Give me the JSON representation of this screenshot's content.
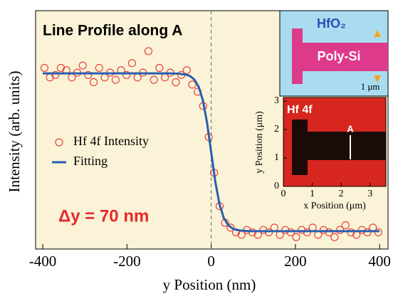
{
  "chart_data": {
    "type": "scatter",
    "title": "Line Profile along A",
    "xlabel": "y Position (nm)",
    "ylabel": "Intensity (arb. units)",
    "annotation": "Δy = 70 nm",
    "xlim": [
      -417,
      420
    ],
    "ylim": [
      0,
      1
    ],
    "xticks": [
      -400,
      -200,
      0,
      200,
      400
    ],
    "reference_line_x": 0,
    "series": [
      {
        "name": "Hf 4f Intensity",
        "style": "markers",
        "color": "#e8443a",
        "x": [
          -396,
          -383,
          -370,
          -357,
          -344,
          -331,
          -318,
          -305,
          -292,
          -279,
          -266,
          -253,
          -240,
          -227,
          -214,
          -201,
          -188,
          -175,
          -162,
          -149,
          -136,
          -123,
          -110,
          -97,
          -84,
          -71,
          -58,
          -45,
          -32,
          -19,
          -6,
          7,
          20,
          33,
          46,
          59,
          72,
          85,
          98,
          111,
          124,
          137,
          150,
          163,
          176,
          189,
          202,
          215,
          228,
          241,
          254,
          267,
          280,
          293,
          306,
          319,
          332,
          345,
          358,
          371,
          384,
          397
        ],
        "values": [
          0.76,
          0.72,
          0.73,
          0.76,
          0.75,
          0.72,
          0.74,
          0.77,
          0.73,
          0.7,
          0.76,
          0.72,
          0.74,
          0.71,
          0.75,
          0.73,
          0.78,
          0.72,
          0.74,
          0.83,
          0.71,
          0.76,
          0.72,
          0.74,
          0.7,
          0.73,
          0.75,
          0.69,
          0.66,
          0.6,
          0.47,
          0.32,
          0.18,
          0.11,
          0.09,
          0.07,
          0.06,
          0.08,
          0.07,
          0.06,
          0.08,
          0.07,
          0.09,
          0.06,
          0.08,
          0.07,
          0.05,
          0.08,
          0.07,
          0.09,
          0.06,
          0.08,
          0.07,
          0.05,
          0.08,
          0.1,
          0.07,
          0.06,
          0.08,
          0.07,
          0.09,
          0.07
        ]
      },
      {
        "name": "Fitting",
        "style": "line",
        "color": "#2a5db0",
        "x": [
          -400,
          -300,
          -200,
          -100,
          -80,
          -60,
          -50,
          -40,
          -30,
          -20,
          -10,
          0,
          10,
          20,
          30,
          40,
          50,
          60,
          80,
          100,
          200,
          300,
          400
        ],
        "values": [
          0.737,
          0.737,
          0.737,
          0.737,
          0.736,
          0.732,
          0.725,
          0.711,
          0.682,
          0.626,
          0.532,
          0.406,
          0.28,
          0.186,
          0.13,
          0.101,
          0.087,
          0.08,
          0.076,
          0.075,
          0.075,
          0.075,
          0.075
        ]
      }
    ]
  },
  "schematic": {
    "oxide": "HfO₂",
    "gate": "Poly-Si",
    "scale": "1 μm"
  },
  "map_inset": {
    "title": "Hf 4f",
    "marker": "A",
    "xlabel": "x Position (μm)",
    "ylabel": "y Position (μm)",
    "xlim": [
      0,
      3.5
    ],
    "ylim": [
      0,
      3.05
    ],
    "xticks": [
      0,
      1,
      2,
      3
    ],
    "yticks": [
      0,
      1,
      2,
      3
    ]
  }
}
